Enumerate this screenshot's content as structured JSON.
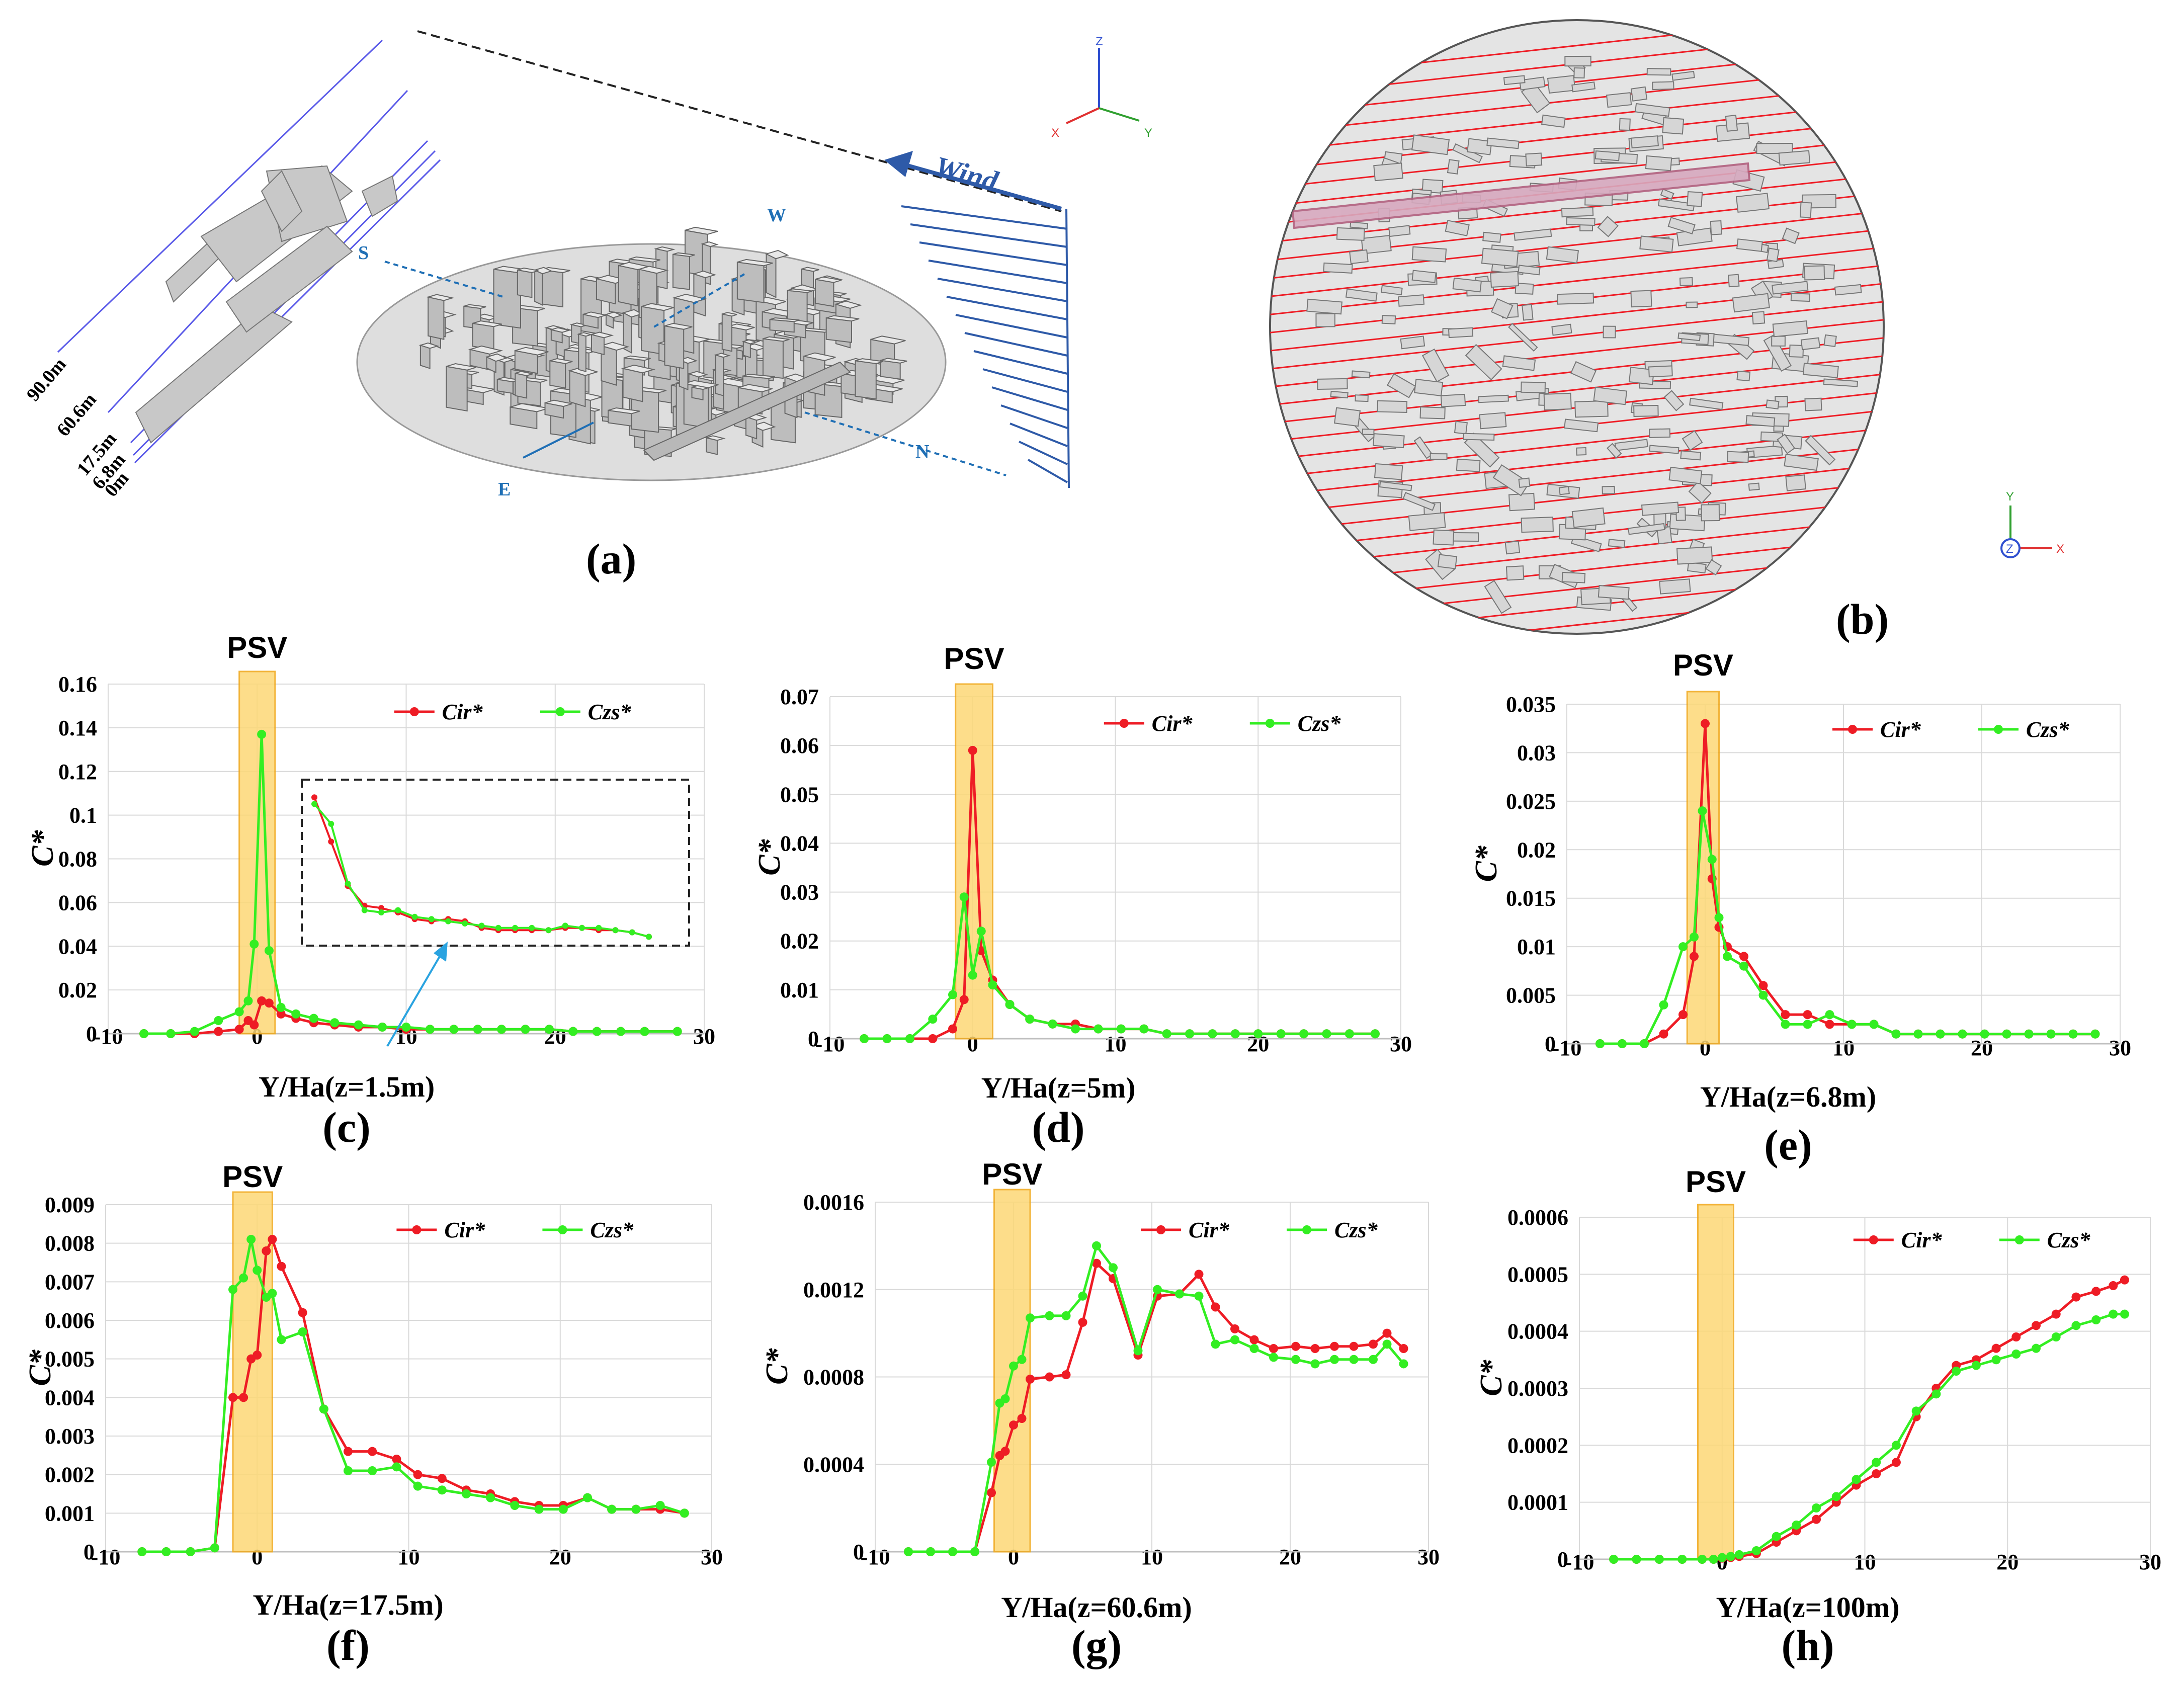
{
  "figure": {
    "panel_a": {
      "label": "(a)",
      "wind_label": "Wind",
      "directions": {
        "s": "S",
        "w": "W",
        "e": "E",
        "n": "N"
      },
      "heights": [
        "90.0m",
        "60.6m",
        "17.5m",
        "6.8m",
        "0m"
      ],
      "axis_triad": {
        "z": "Z",
        "x": "X",
        "y": "Y"
      }
    },
    "panel_b": {
      "label": "(b)",
      "axis_triad": {
        "y": "Y",
        "z": "Z",
        "x": "X"
      }
    },
    "colors": {
      "cir": "#ee1c25",
      "czs": "#33ee22",
      "psv": "#fdd876",
      "psv_edge": "#f0a818"
    }
  },
  "chart_data": [
    {
      "type": "line",
      "panel": "(c)",
      "xlabel": "Y/Ha(z=1.5m)",
      "ylabel": "C*",
      "psv_label": "PSV",
      "xlim": [
        -10,
        30
      ],
      "ylim": [
        0,
        0.16
      ],
      "xticks": [
        -10,
        0,
        10,
        20,
        30
      ],
      "yticks": [
        "0",
        "0.02",
        "0.04",
        "0.06",
        "0.08",
        "0.1",
        "0.12",
        "0.14",
        "0.16"
      ],
      "series": [
        {
          "name": "Cir*",
          "x": [
            -7.6,
            -5.8,
            -4.2,
            -2.6,
            -1.2,
            -0.6,
            -0.2,
            0.3,
            0.8,
            1.6,
            2.6,
            3.8,
            5.2,
            6.8,
            8.4,
            10,
            11.6,
            13.2,
            14.8,
            16.4,
            18,
            19.6,
            21.2,
            22.8,
            24.4,
            26,
            28.2
          ],
          "y": [
            0,
            0,
            0,
            0.001,
            0.002,
            0.006,
            0.004,
            0.015,
            0.014,
            0.009,
            0.007,
            0.005,
            0.004,
            0.003,
            0.003,
            0.002,
            0.002,
            0.002,
            0.002,
            0.002,
            0.002,
            0.002,
            0.001,
            0.001,
            0.001,
            0.001,
            0.001
          ]
        },
        {
          "name": "Czs*",
          "x": [
            -7.6,
            -5.8,
            -4.2,
            -2.6,
            -1.2,
            -0.6,
            -0.2,
            0.3,
            0.8,
            1.6,
            2.6,
            3.8,
            5.2,
            6.8,
            8.4,
            10,
            11.6,
            13.2,
            14.8,
            16.4,
            18,
            19.6,
            21.2,
            22.8,
            24.4,
            26,
            28.2
          ],
          "y": [
            0,
            0,
            0.001,
            0.006,
            0.01,
            0.015,
            0.041,
            0.137,
            0.038,
            0.012,
            0.009,
            0.007,
            0.005,
            0.004,
            0.003,
            0.003,
            0.002,
            0.002,
            0.002,
            0.002,
            0.002,
            0.002,
            0.001,
            0.001,
            0.001,
            0.001,
            0.001
          ]
        }
      ],
      "inset": {
        "series": [
          {
            "name": "Cir*",
            "y": [
              0.107,
              0.087,
              0.067,
              0.058,
              0.057,
              0.055,
              0.052,
              0.051,
              0.052,
              0.051,
              0.048,
              0.047,
              0.047,
              0.047,
              0.047,
              0.048,
              0.048,
              0.047,
              0.047,
              0.046,
              0.044
            ]
          },
          {
            "name": "Czs*",
            "y": [
              0.104,
              0.095,
              0.068,
              0.056,
              0.055,
              0.056,
              0.053,
              0.052,
              0.051,
              0.05,
              0.049,
              0.048,
              0.048,
              0.048,
              0.047,
              0.049,
              0.048,
              0.048,
              0.047,
              0.046,
              0.044
            ]
          }
        ]
      }
    },
    {
      "type": "line",
      "panel": "(d)",
      "xlabel": "Y/Ha(z=5m)",
      "ylabel": "C*",
      "psv_label": "PSV",
      "xlim": [
        -10,
        30
      ],
      "ylim": [
        0,
        0.07
      ],
      "xticks": [
        -10,
        0,
        10,
        20,
        30
      ],
      "yticks": [
        "0",
        "0.01",
        "0.02",
        "0.03",
        "0.04",
        "0.05",
        "0.06",
        "0.07"
      ],
      "series": [
        {
          "name": "Cir*",
          "x": [
            -7.6,
            -6,
            -4.4,
            -2.8,
            -1.4,
            -0.6,
            0,
            0.6,
            1.4,
            2.6,
            4,
            5.6,
            7.2,
            8.8,
            10.4,
            12,
            13.6,
            15.2,
            16.8,
            18.4,
            20,
            21.6,
            23.2,
            24.8,
            26.4,
            28.2
          ],
          "y": [
            0,
            0,
            0,
            0,
            0.002,
            0.008,
            0.059,
            0.018,
            0.012,
            0.007,
            0.004,
            0.003,
            0.003,
            0.002,
            0.002,
            0.002,
            0.001,
            0.001,
            0.001,
            0.001,
            0.001,
            0.001,
            0.001,
            0.001,
            0.001,
            0.001
          ]
        },
        {
          "name": "Czs*",
          "x": [
            -7.6,
            -6,
            -4.4,
            -2.8,
            -1.4,
            -0.6,
            0,
            0.6,
            1.4,
            2.6,
            4,
            5.6,
            7.2,
            8.8,
            10.4,
            12,
            13.6,
            15.2,
            16.8,
            18.4,
            20,
            21.6,
            23.2,
            24.8,
            26.4,
            28.2
          ],
          "y": [
            0,
            0,
            0,
            0.004,
            0.009,
            0.029,
            0.013,
            0.022,
            0.011,
            0.007,
            0.004,
            0.003,
            0.002,
            0.002,
            0.002,
            0.002,
            0.001,
            0.001,
            0.001,
            0.001,
            0.001,
            0.001,
            0.001,
            0.001,
            0.001,
            0.001
          ]
        }
      ]
    },
    {
      "type": "line",
      "panel": "(e)",
      "xlabel": "Y/Ha(z=6.8m)",
      "ylabel": "C*",
      "psv_label": "PSV",
      "xlim": [
        -10,
        30
      ],
      "ylim": [
        0,
        0.035
      ],
      "xticks": [
        -10,
        0,
        10,
        20,
        30
      ],
      "yticks": [
        "0",
        "0.005",
        "0.01",
        "0.015",
        "0.02",
        "0.025",
        "0.03",
        "0.035"
      ],
      "series": [
        {
          "name": "Cir*",
          "x": [
            -7.6,
            -6,
            -4.4,
            -3,
            -1.6,
            -0.8,
            0,
            0.5,
            1,
            1.6,
            2.8,
            4.2,
            5.8,
            7.4,
            9,
            10.6,
            12.2,
            13.8,
            15.4,
            17,
            18.6,
            20.2,
            21.8,
            23.4,
            25,
            26.6,
            28.2
          ],
          "y": [
            0,
            0,
            0,
            0.001,
            0.003,
            0.009,
            0.033,
            0.017,
            0.012,
            0.01,
            0.009,
            0.006,
            0.003,
            0.003,
            0.002,
            0.002,
            0.002,
            0.001,
            0.001,
            0.001,
            0.001,
            0.001,
            0.001,
            0.001,
            0.001,
            0.001,
            0.001
          ]
        },
        {
          "name": "Czs*",
          "x": [
            -7.6,
            -6,
            -4.4,
            -3,
            -1.6,
            -0.8,
            -0.2,
            0.5,
            1,
            1.6,
            2.8,
            4.2,
            5.8,
            7.4,
            9,
            10.6,
            12.2,
            13.8,
            15.4,
            17,
            18.6,
            20.2,
            21.8,
            23.4,
            25,
            26.6,
            28.2
          ],
          "y": [
            0,
            0,
            0,
            0.004,
            0.01,
            0.011,
            0.024,
            0.019,
            0.013,
            0.009,
            0.008,
            0.005,
            0.002,
            0.002,
            0.003,
            0.002,
            0.002,
            0.001,
            0.001,
            0.001,
            0.001,
            0.001,
            0.001,
            0.001,
            0.001,
            0.001,
            0.001
          ]
        }
      ]
    },
    {
      "type": "line",
      "panel": "(f)",
      "xlabel": "Y/Ha(z=17.5m)",
      "ylabel": "C*",
      "psv_label": "PSV",
      "xlim": [
        -10,
        30
      ],
      "ylim": [
        0,
        0.009
      ],
      "xticks": [
        -10,
        0,
        10,
        20,
        30
      ],
      "yticks": [
        "0",
        "0.001",
        "0.002",
        "0.003",
        "0.004",
        "0.005",
        "0.006",
        "0.007",
        "0.008",
        "0.009"
      ],
      "series": [
        {
          "name": "Cir*",
          "x": [
            -7.6,
            -6,
            -4.4,
            -2.8,
            -1.6,
            -0.9,
            -0.4,
            0,
            0.6,
            1,
            1.6,
            3,
            4.4,
            6,
            7.6,
            9.2,
            10.6,
            12.2,
            13.8,
            15.4,
            17,
            18.6,
            20.2,
            21.8,
            23.4,
            25,
            26.6,
            28.2
          ],
          "y": [
            0,
            0,
            0,
            0.0001,
            0.004,
            0.004,
            0.005,
            0.0051,
            0.0078,
            0.0081,
            0.0074,
            0.0062,
            0.0037,
            0.0026,
            0.0026,
            0.0024,
            0.002,
            0.0019,
            0.0016,
            0.0015,
            0.0013,
            0.0012,
            0.0012,
            0.0014,
            0.0011,
            0.0011,
            0.0011,
            0.001
          ]
        },
        {
          "name": "Czs*",
          "x": [
            -7.6,
            -6,
            -4.4,
            -2.8,
            -1.6,
            -0.9,
            -0.4,
            0,
            0.6,
            1,
            1.6,
            3,
            4.4,
            6,
            7.6,
            9.2,
            10.6,
            12.2,
            13.8,
            15.4,
            17,
            18.6,
            20.2,
            21.8,
            23.4,
            25,
            26.6,
            28.2
          ],
          "y": [
            0,
            0,
            0,
            0.0001,
            0.0068,
            0.0071,
            0.0081,
            0.0073,
            0.0066,
            0.0067,
            0.0055,
            0.0057,
            0.0037,
            0.0021,
            0.0021,
            0.0022,
            0.0017,
            0.0016,
            0.0015,
            0.0014,
            0.0012,
            0.0011,
            0.0011,
            0.0014,
            0.0011,
            0.0011,
            0.0012,
            0.001
          ]
        }
      ]
    },
    {
      "type": "line",
      "panel": "(g)",
      "xlabel": "Y/Ha(z=60.6m)",
      "ylabel": "C*",
      "psv_label": "PSV",
      "xlim": [
        -10,
        30
      ],
      "ylim": [
        0,
        0.0016
      ],
      "xticks": [
        -10,
        0,
        10,
        20,
        30
      ],
      "yticks": [
        "0",
        "0.0004",
        "0.0008",
        "0.0012",
        "0.0016"
      ],
      "series": [
        {
          "name": "Cir*",
          "x": [
            -7.6,
            -6,
            -4.4,
            -2.8,
            -1.6,
            -1,
            -0.6,
            0,
            0.6,
            1.2,
            2.6,
            3.8,
            5,
            6,
            7.2,
            9,
            10.4,
            12,
            13.4,
            14.6,
            16,
            17.4,
            18.8,
            20.4,
            21.8,
            23.2,
            24.6,
            26,
            27,
            28.2
          ],
          "y": [
            0,
            0,
            0,
            0,
            0.00027,
            0.00044,
            0.00046,
            0.00058,
            0.00061,
            0.00079,
            0.0008,
            0.00081,
            0.00105,
            0.00132,
            0.00125,
            0.0009,
            0.00117,
            0.00118,
            0.00127,
            0.00112,
            0.00102,
            0.00097,
            0.00093,
            0.00094,
            0.00093,
            0.00094,
            0.00094,
            0.00095,
            0.001,
            0.00093
          ]
        },
        {
          "name": "Czs*",
          "x": [
            -7.6,
            -6,
            -4.4,
            -2.8,
            -1.6,
            -1,
            -0.6,
            0,
            0.6,
            1.2,
            2.6,
            3.8,
            5,
            6,
            7.2,
            9,
            10.4,
            12,
            13.4,
            14.6,
            16,
            17.4,
            18.8,
            20.4,
            21.8,
            23.2,
            24.6,
            26,
            27,
            28.2
          ],
          "y": [
            0,
            0,
            0,
            0,
            0.00041,
            0.00068,
            0.0007,
            0.00085,
            0.00088,
            0.00107,
            0.00108,
            0.00108,
            0.00117,
            0.0014,
            0.0013,
            0.00092,
            0.0012,
            0.00118,
            0.00117,
            0.00095,
            0.00097,
            0.00093,
            0.00089,
            0.00088,
            0.00086,
            0.00088,
            0.00088,
            0.00088,
            0.00095,
            0.00086
          ]
        }
      ]
    },
    {
      "type": "line",
      "panel": "(h)",
      "xlabel": "Y/Ha(z=100m)",
      "ylabel": "C*",
      "psv_label": "PSV",
      "xlim": [
        -10,
        30
      ],
      "ylim": [
        0,
        0.0006
      ],
      "xticks": [
        -10,
        0,
        10,
        20,
        30
      ],
      "yticks": [
        "0",
        "0.0001",
        "0.0002",
        "0.0003",
        "0.0004",
        "0.0005",
        "0.0006"
      ],
      "series": [
        {
          "name": "Cir*",
          "x": [
            -7.6,
            -6,
            -4.4,
            -2.8,
            -1.4,
            -0.6,
            0,
            0.6,
            1.2,
            2.4,
            3.8,
            5.2,
            6.6,
            8,
            9.4,
            10.8,
            12.2,
            13.6,
            15,
            16.4,
            17.8,
            19.2,
            20.6,
            22,
            23.4,
            24.8,
            26.2,
            27.4,
            28.2
          ],
          "y": [
            0,
            0,
            0,
            0,
            0,
            0,
            2e-06,
            3e-06,
            5e-06,
            1e-05,
            3e-05,
            5e-05,
            7e-05,
            0.0001,
            0.00013,
            0.00015,
            0.00017,
            0.00025,
            0.0003,
            0.00034,
            0.00035,
            0.00037,
            0.00039,
            0.00041,
            0.00043,
            0.00046,
            0.00047,
            0.00048,
            0.00049
          ]
        },
        {
          "name": "Czs*",
          "x": [
            -7.6,
            -6,
            -4.4,
            -2.8,
            -1.4,
            -0.6,
            0,
            0.6,
            1.2,
            2.4,
            3.8,
            5.2,
            6.6,
            8,
            9.4,
            10.8,
            12.2,
            13.6,
            15,
            16.4,
            17.8,
            19.2,
            20.6,
            22,
            23.4,
            24.8,
            26.2,
            27.4,
            28.2
          ],
          "y": [
            0,
            0,
            0,
            0,
            0,
            0,
            3e-06,
            5e-06,
            8e-06,
            1.5e-05,
            4e-05,
            6e-05,
            9e-05,
            0.00011,
            0.00014,
            0.00017,
            0.0002,
            0.00026,
            0.00029,
            0.00033,
            0.00034,
            0.00035,
            0.00036,
            0.00037,
            0.00039,
            0.00041,
            0.00042,
            0.00043,
            0.00043
          ]
        }
      ]
    }
  ]
}
